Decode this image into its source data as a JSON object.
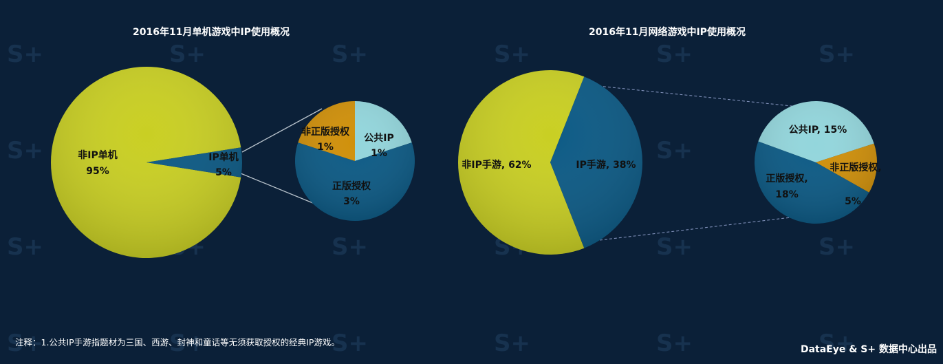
{
  "colors": {
    "background": "#0b2038",
    "lime": "#c9cf23",
    "dark_blue": "#0c5a85",
    "light_blue": "#93d6dc",
    "gold": "#d0900a"
  },
  "watermark_text": "S+",
  "chart_data": [
    {
      "type": "pie",
      "title": "2016年11月单机游戏中IP使用概况",
      "slices": [
        {
          "label": "非IP单机",
          "value_label": "95%",
          "value": 95,
          "color": "#c9cf23"
        },
        {
          "label": "IP单机",
          "value_label": "5%",
          "value": 5,
          "color": "#0c5a85"
        }
      ],
      "breakdown_of": "IP单机",
      "breakdown": [
        {
          "label": "公共IP",
          "value_label": "1%",
          "value": 1,
          "color": "#93d6dc"
        },
        {
          "label": "正版授权",
          "value_label": "3%",
          "value": 3,
          "color": "#0c5a85"
        },
        {
          "label": "非正版授权",
          "value_label": "1%",
          "value": 1,
          "color": "#d0900a"
        }
      ]
    },
    {
      "type": "pie",
      "title": "2016年11月网络游戏中IP使用概况",
      "slices": [
        {
          "label": "非IP手游, 62%",
          "value": 62,
          "color": "#c9cf23"
        },
        {
          "label": "IP手游, 38%",
          "value": 38,
          "color": "#0c5a85"
        }
      ],
      "breakdown_of": "IP手游, 38%",
      "breakdown": [
        {
          "label": "公共IP, 15%",
          "value": 15,
          "color": "#93d6dc"
        },
        {
          "label": "非正版授权,",
          "label_line2": "5%",
          "value": 5,
          "color": "#d0900a"
        },
        {
          "label": "正版授权,",
          "label_line2": "18%",
          "value": 18,
          "color": "#0c5a85"
        }
      ]
    }
  ],
  "footnote": "注释：1.公共IP手游指题材为三国、西游、封神和童话等无须获取授权的经典IP游戏。",
  "brand": "DataEye & S+ 数据中心出品"
}
